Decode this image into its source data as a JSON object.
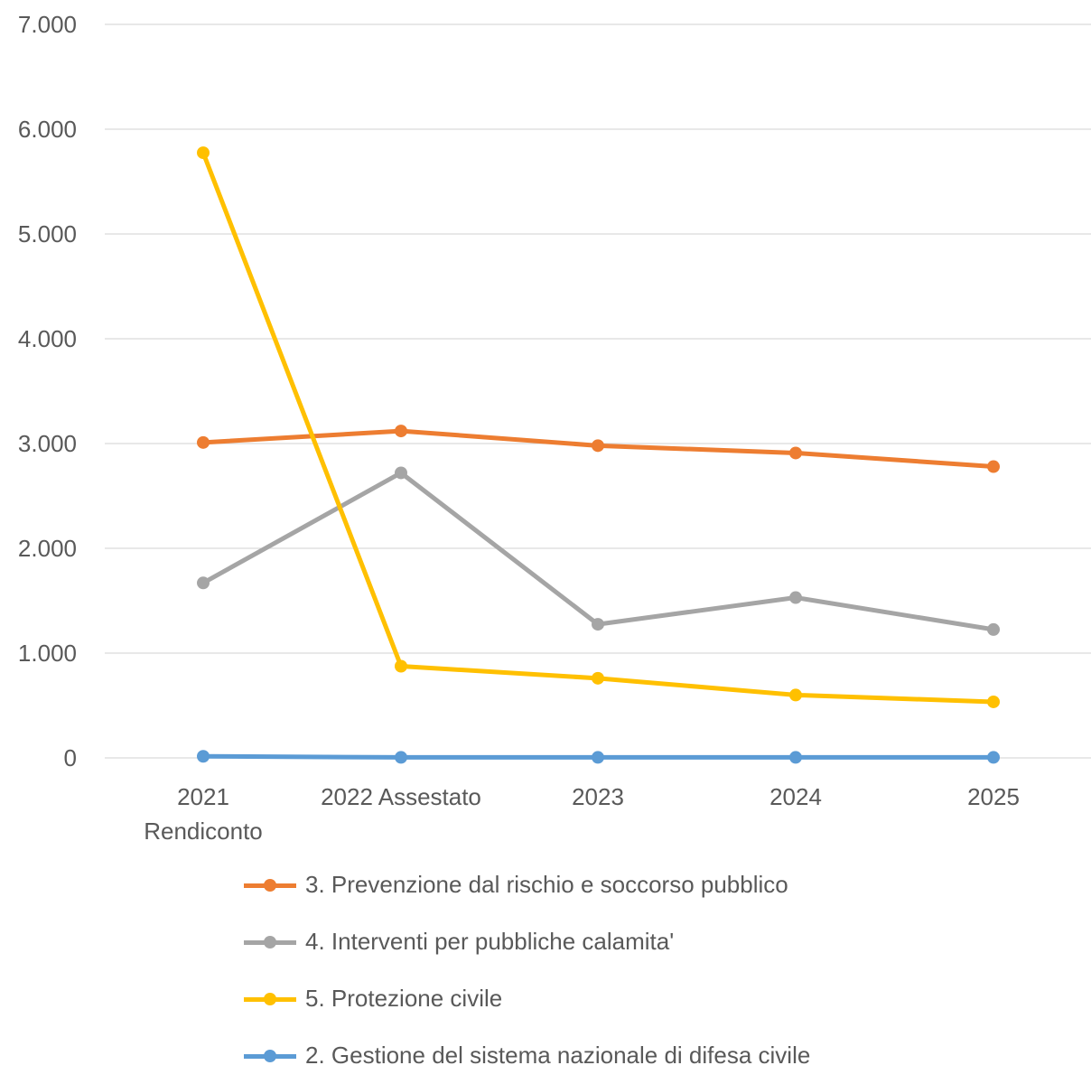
{
  "chart_data": {
    "type": "line",
    "categories": [
      [
        "2021",
        "Rendiconto"
      ],
      [
        "2022 Assestato"
      ],
      [
        "2023"
      ],
      [
        "2024"
      ],
      [
        "2025"
      ]
    ],
    "y_ticks": [
      "0",
      "1.000",
      "2.000",
      "3.000",
      "4.000",
      "5.000",
      "6.000",
      "7.000"
    ],
    "ylim": [
      0,
      7000
    ],
    "grid": true,
    "legend_position": "bottom",
    "series": [
      {
        "name": "3. Prevenzione dal rischio e soccorso pubblico",
        "color": "#ED7D31",
        "values": [
          3010,
          3120,
          2980,
          2910,
          2780
        ]
      },
      {
        "name": "4. Interventi per pubbliche calamita'",
        "color": "#A5A5A5",
        "values": [
          1670,
          2720,
          1275,
          1530,
          1225
        ]
      },
      {
        "name": "5. Protezione civile",
        "color": "#FFC000",
        "values": [
          5775,
          875,
          760,
          600,
          535
        ]
      },
      {
        "name": "2. Gestione del sistema nazionale di difesa civile",
        "color": "#5B9BD5",
        "values": [
          15,
          5,
          5,
          5,
          5
        ]
      }
    ],
    "draw_order": [
      3,
      1,
      0,
      2
    ]
  }
}
